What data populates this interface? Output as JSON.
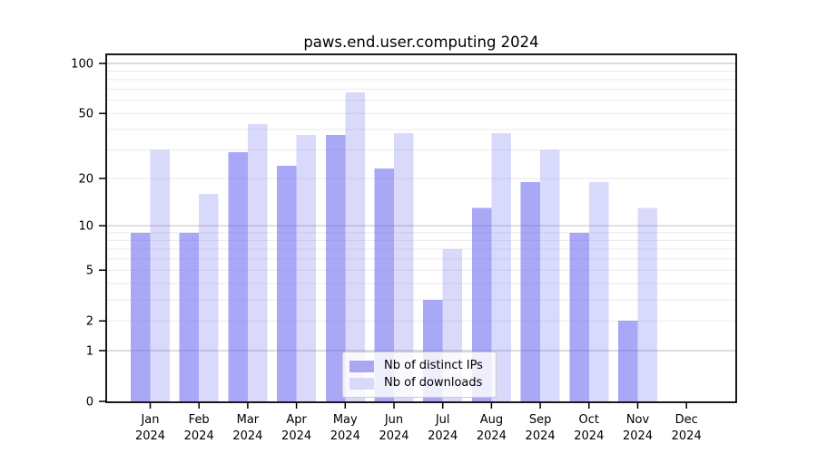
{
  "chart_data": {
    "type": "bar",
    "title": "paws.end.user.computing 2024",
    "categories": [
      "Jan 2024",
      "Feb 2024",
      "Mar 2024",
      "Apr 2024",
      "May 2024",
      "Jun 2024",
      "Jul 2024",
      "Aug 2024",
      "Sep 2024",
      "Oct 2024",
      "Nov 2024",
      "Dec 2024"
    ],
    "series": [
      {
        "name": "Nb of distinct IPs",
        "color": "#a8a8f1",
        "fill": "rgba(107,107,240,0.59)",
        "values": [
          9,
          9,
          29,
          24,
          37,
          23,
          3,
          13,
          19,
          9,
          2,
          0
        ]
      },
      {
        "name": "Nb of downloads",
        "color": "#d9d9f8",
        "fill": "rgba(107,107,240,0.26)",
        "values": [
          30,
          16,
          43,
          37,
          67,
          38,
          7,
          38,
          30,
          19,
          13,
          0
        ]
      }
    ],
    "yticks": [
      0,
      1,
      2,
      5,
      10,
      20,
      50,
      100
    ],
    "yscale": "symlog ln(1+x)",
    "ylim": [
      0,
      113
    ],
    "grid": "horizontal, log minor lines at 2-9,20-90; major lines at 1,10,100",
    "legend_position": "lower center",
    "colors": {
      "axis": "#000000",
      "tick_text": "#000000",
      "grid_major": "#c6c6c6",
      "grid_minor": "#eaeaea",
      "legend_border": "#cccccc"
    }
  }
}
